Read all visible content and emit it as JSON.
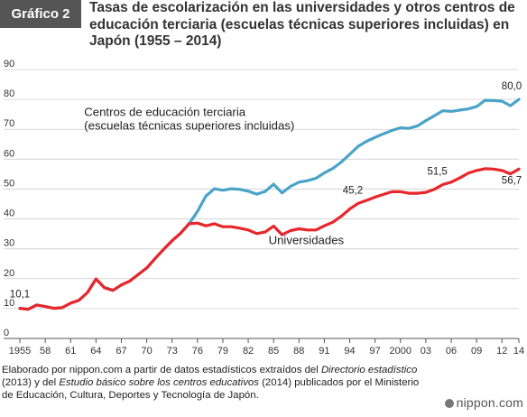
{
  "badge": "Gráfico 2",
  "title": "Tasas de escolarización en las universidades y otros centros de educación terciaria (escuelas técnicas superiores incluidas) en Japón (1955 – 2014)",
  "note": {
    "p1": "Elaborado por nippon.com a partir de datos estadísticos extraídos del ",
    "i1": "Directorio estadístico",
    "p2": " (2013) y del ",
    "i2": "Estudio básico sobre los centros educativos",
    "p3": " (2014) publicados por el Ministerio de Educación, Cultura, Deportes y Tecnología de Japón."
  },
  "logo": "nippon.com",
  "chart_data": {
    "type": "line",
    "ylim": [
      0,
      90
    ],
    "yticks": [
      0,
      10,
      20,
      30,
      40,
      50,
      60,
      70,
      80,
      90
    ],
    "xlim": [
      1955,
      2014
    ],
    "xtick_positions": [
      1955,
      1958,
      1961,
      1964,
      1967,
      1970,
      1973,
      1976,
      1979,
      1982,
      1985,
      1988,
      1991,
      1994,
      1997,
      2000,
      2003,
      2006,
      2009,
      2012,
      2014
    ],
    "xtick_labels": [
      "1955",
      "58",
      "61",
      "64",
      "67",
      "70",
      "73",
      "76",
      "79",
      "82",
      "85",
      "88",
      "91",
      "94",
      "97",
      "2000",
      "03",
      "06",
      "09",
      "12",
      "14"
    ],
    "grid": true,
    "x": [
      1955,
      1956,
      1957,
      1958,
      1959,
      1960,
      1961,
      1962,
      1963,
      1964,
      1965,
      1966,
      1967,
      1968,
      1969,
      1970,
      1971,
      1972,
      1973,
      1974,
      1975,
      1976,
      1977,
      1978,
      1979,
      1980,
      1981,
      1982,
      1983,
      1984,
      1985,
      1986,
      1987,
      1988,
      1989,
      1990,
      1991,
      1992,
      1993,
      1994,
      1995,
      1996,
      1997,
      1998,
      1999,
      2000,
      2001,
      2002,
      2003,
      2004,
      2005,
      2006,
      2007,
      2008,
      2009,
      2010,
      2011,
      2012,
      2013,
      2014
    ],
    "series": [
      {
        "name": "Centros de educación terciaria (escuelas técnicas superiores incluidas)",
        "color": "#4aa3c8",
        "values": [
          10.1,
          9.8,
          11.2,
          10.7,
          10.1,
          10.3,
          11.8,
          12.8,
          15.4,
          19.9,
          17.0,
          16.1,
          17.9,
          19.2,
          21.4,
          23.6,
          26.8,
          29.8,
          32.7,
          35.2,
          38.4,
          42.5,
          47.7,
          50.1,
          49.6,
          50.1,
          49.9,
          49.3,
          48.3,
          49.2,
          51.6,
          48.7,
          50.9,
          52.3,
          52.8,
          53.6,
          55.4,
          56.9,
          59.0,
          61.6,
          64.3,
          66.0,
          67.3,
          68.5,
          69.6,
          70.5,
          70.3,
          71.1,
          72.9,
          74.5,
          76.2,
          76.0,
          76.4,
          76.8,
          77.6,
          79.7,
          79.6,
          79.4,
          77.9,
          80.0
        ]
      },
      {
        "name": "Universidades",
        "color": "#e8262b",
        "values": [
          10.1,
          9.8,
          11.2,
          10.7,
          10.1,
          10.3,
          11.8,
          12.8,
          15.4,
          19.9,
          17.0,
          16.1,
          17.9,
          19.2,
          21.4,
          23.6,
          26.8,
          29.8,
          32.7,
          35.2,
          38.4,
          38.6,
          37.7,
          38.4,
          37.4,
          37.4,
          36.9,
          36.3,
          35.1,
          35.6,
          37.6,
          34.7,
          36.1,
          36.7,
          36.3,
          36.3,
          37.7,
          38.9,
          40.9,
          43.3,
          45.2,
          46.2,
          47.3,
          48.2,
          49.1,
          49.1,
          48.6,
          48.6,
          48.9,
          49.9,
          51.5,
          52.3,
          53.7,
          55.3,
          56.2,
          56.8,
          56.7,
          56.2,
          55.1,
          56.7
        ]
      }
    ],
    "annotations": [
      {
        "text": "10,1",
        "x": 1955,
        "y": 10.1,
        "dx": 0,
        "dy": -12
      },
      {
        "text": "45,2",
        "x": 1995,
        "y": 45.2,
        "dx": -6,
        "dy": -11
      },
      {
        "text": "51,5",
        "x": 2005,
        "y": 51.5,
        "dx": -6,
        "dy": -11
      },
      {
        "text": "80,0",
        "x": 2014,
        "y": 80.0,
        "dx": -8,
        "dy": -11
      },
      {
        "text": "56,7",
        "x": 2014,
        "y": 56.7,
        "dx": -8,
        "dy": 16
      }
    ],
    "series_labels": [
      {
        "lines": [
          "Centros de educación terciaria",
          "(escuelas técnicas superiores incluidas)"
        ],
        "x": 1962.6,
        "y": 74.5
      },
      {
        "lines": [
          "Universidades"
        ],
        "x": 1984.4,
        "y": 31.5
      }
    ]
  }
}
